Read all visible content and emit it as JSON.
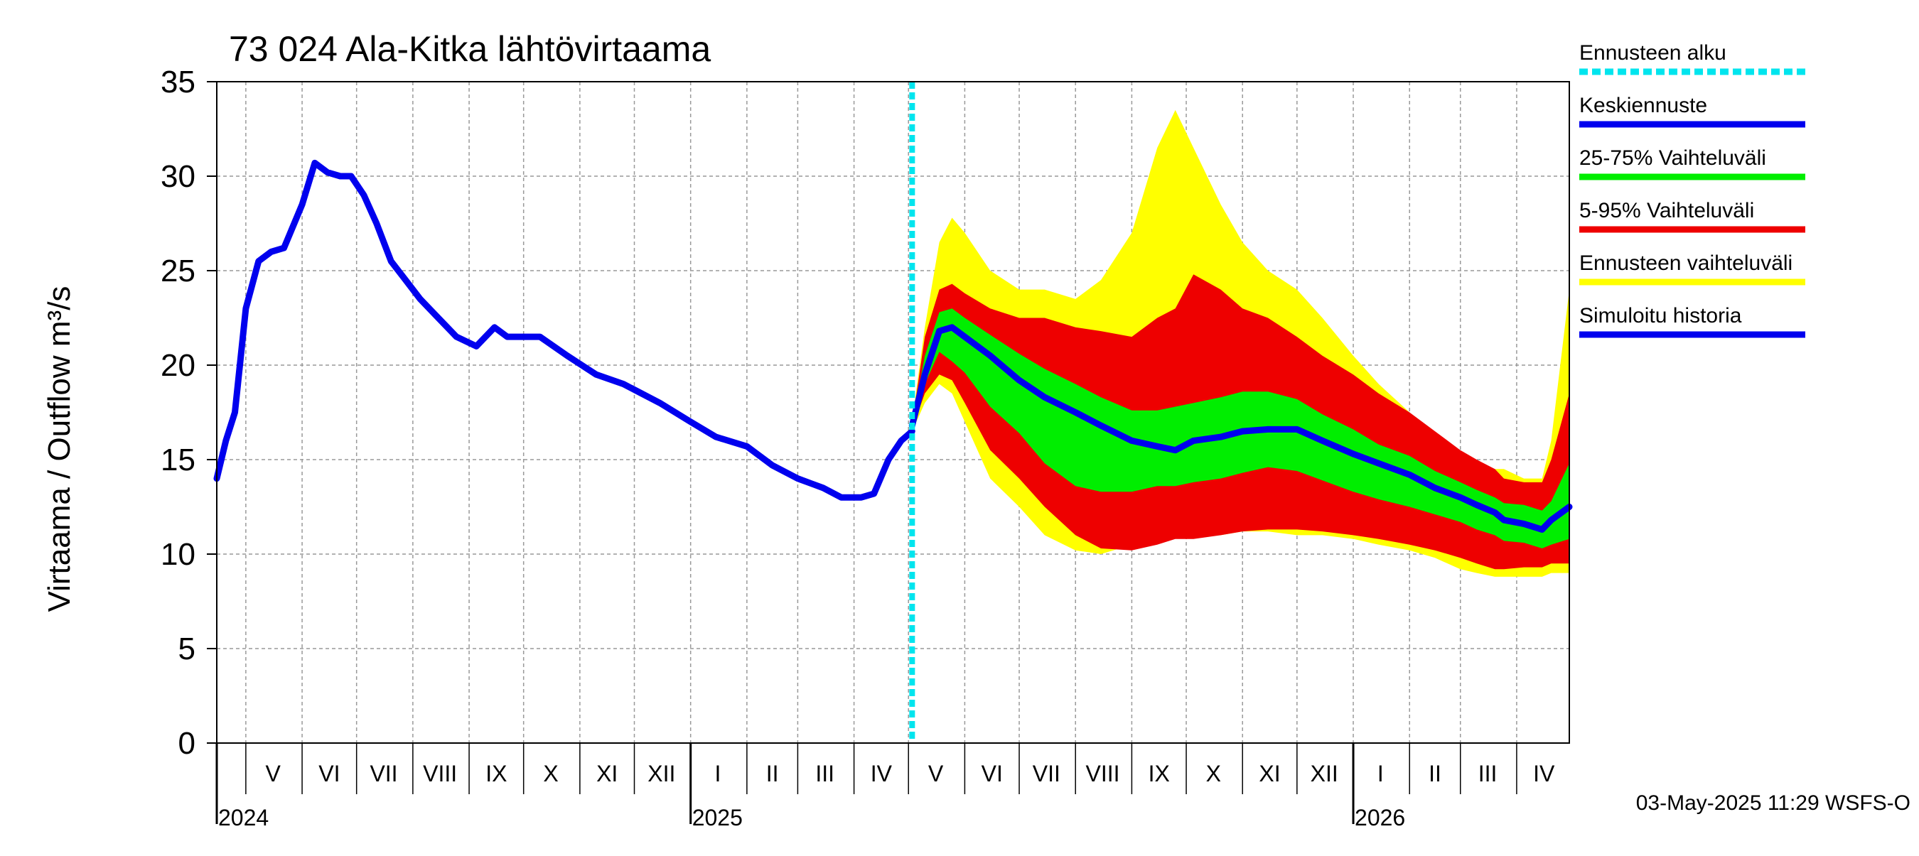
{
  "chart_data": {
    "type": "line",
    "title": "73 024 Ala-Kitka lähtövirtaama",
    "ylabel": "Virtaama / Outflow    m³/s",
    "ylim": [
      0,
      35
    ],
    "yticks": [
      0,
      5,
      10,
      15,
      20,
      25,
      30,
      35
    ],
    "xlim": [
      "2024-04-15",
      "2026-04-30"
    ],
    "forecast_start": "2025-05-03",
    "month_labels": [
      {
        "label": "V",
        "date": "2024-05-16"
      },
      {
        "label": "VI",
        "date": "2024-06-16"
      },
      {
        "label": "VII",
        "date": "2024-07-16"
      },
      {
        "label": "VIII",
        "date": "2024-08-16"
      },
      {
        "label": "IX",
        "date": "2024-09-16"
      },
      {
        "label": "X",
        "date": "2024-10-16"
      },
      {
        "label": "XI",
        "date": "2024-11-16"
      },
      {
        "label": "XII",
        "date": "2024-12-16"
      },
      {
        "label": "I",
        "date": "2025-01-16"
      },
      {
        "label": "II",
        "date": "2025-02-15"
      },
      {
        "label": "III",
        "date": "2025-03-16"
      },
      {
        "label": "IV",
        "date": "2025-04-16"
      },
      {
        "label": "V",
        "date": "2025-05-16"
      },
      {
        "label": "VI",
        "date": "2025-06-16"
      },
      {
        "label": "VII",
        "date": "2025-07-16"
      },
      {
        "label": "VIII",
        "date": "2025-08-16"
      },
      {
        "label": "IX",
        "date": "2025-09-16"
      },
      {
        "label": "X",
        "date": "2025-10-16"
      },
      {
        "label": "XI",
        "date": "2025-11-16"
      },
      {
        "label": "XII",
        "date": "2025-12-16"
      },
      {
        "label": "I",
        "date": "2026-01-16"
      },
      {
        "label": "II",
        "date": "2026-02-15"
      },
      {
        "label": "III",
        "date": "2026-03-16"
      },
      {
        "label": "IV",
        "date": "2026-04-16"
      }
    ],
    "year_labels": [
      {
        "label": "2024",
        "date": "2024-04-15"
      },
      {
        "label": "2025",
        "date": "2025-01-01"
      },
      {
        "label": "2026",
        "date": "2026-01-01"
      }
    ],
    "legend": [
      {
        "label": "Ennusteen alku",
        "color": "#00e5ee",
        "style": "dotted"
      },
      {
        "label": "Keskiennuste",
        "color": "#0000ee",
        "style": "line"
      },
      {
        "label": "25-75% Vaihteluväli",
        "color": "#00ee00",
        "style": "line"
      },
      {
        "label": "5-95% Vaihteluväli",
        "color": "#ee0000",
        "style": "line"
      },
      {
        "label": "Ennusteen vaihteluväli",
        "color": "#ffff00",
        "style": "line"
      },
      {
        "label": "Simuloitu historia",
        "color": "#0000ee",
        "style": "line"
      }
    ],
    "footer": "03-May-2025 11:29 WSFS-O",
    "colors": {
      "history": "#0000ee",
      "median": "#0000ee",
      "band_25_75": "#00ee00",
      "band_5_95": "#ee0000",
      "band_minmax": "#ffff00",
      "forecast_start": "#00e5ee",
      "grid": "#999999"
    },
    "series": [
      {
        "name": "Simuloitu historia",
        "x": [
          "2024-04-15",
          "2024-04-20",
          "2024-04-25",
          "2024-05-01",
          "2024-05-08",
          "2024-05-15",
          "2024-05-22",
          "2024-06-01",
          "2024-06-08",
          "2024-06-15",
          "2024-06-22",
          "2024-06-28",
          "2024-07-05",
          "2024-07-12",
          "2024-07-20",
          "2024-07-28",
          "2024-08-05",
          "2024-08-15",
          "2024-08-25",
          "2024-09-05",
          "2024-09-15",
          "2024-09-22",
          "2024-09-28",
          "2024-10-10",
          "2024-10-25",
          "2024-11-10",
          "2024-11-25",
          "2024-12-15",
          "2025-01-01",
          "2025-01-15",
          "2025-02-01",
          "2025-02-15",
          "2025-03-01",
          "2025-03-15",
          "2025-03-25",
          "2025-04-05",
          "2025-04-12",
          "2025-04-20",
          "2025-04-27",
          "2025-05-03"
        ],
        "values": [
          14.0,
          16.0,
          17.5,
          23.0,
          25.5,
          26.0,
          26.2,
          28.5,
          30.7,
          30.2,
          30.0,
          30.0,
          29.0,
          27.5,
          25.5,
          24.5,
          23.5,
          22.5,
          21.5,
          21.0,
          22.0,
          21.5,
          21.5,
          21.5,
          20.5,
          19.5,
          19.0,
          18.0,
          17.0,
          16.2,
          15.7,
          14.7,
          14.0,
          13.5,
          13.0,
          13.0,
          13.2,
          15.0,
          16.0,
          16.5
        ]
      },
      {
        "name": "Keskiennuste",
        "x": [
          "2025-05-03",
          "2025-05-10",
          "2025-05-18",
          "2025-05-25",
          "2025-06-01",
          "2025-06-15",
          "2025-07-01",
          "2025-07-15",
          "2025-08-01",
          "2025-08-15",
          "2025-09-01",
          "2025-09-15",
          "2025-09-25",
          "2025-10-05",
          "2025-10-20",
          "2025-11-01",
          "2025-11-15",
          "2025-12-01",
          "2025-12-15",
          "2026-01-01",
          "2026-01-15",
          "2026-02-01",
          "2026-02-15",
          "2026-03-01",
          "2026-03-10",
          "2026-03-20",
          "2026-03-25",
          "2026-04-05",
          "2026-04-15",
          "2026-04-20",
          "2026-04-30"
        ],
        "values": [
          16.8,
          19.5,
          21.8,
          22.0,
          21.5,
          20.5,
          19.2,
          18.3,
          17.5,
          16.8,
          16.0,
          15.7,
          15.5,
          16.0,
          16.2,
          16.5,
          16.6,
          16.6,
          16.0,
          15.3,
          14.8,
          14.2,
          13.5,
          13.0,
          12.6,
          12.2,
          11.8,
          11.6,
          11.3,
          11.8,
          12.5
        ]
      }
    ],
    "bands": [
      {
        "name": "Ennusteen vaihteluväli",
        "x": [
          "2025-05-03",
          "2025-05-10",
          "2025-05-18",
          "2025-05-25",
          "2025-06-01",
          "2025-06-15",
          "2025-07-01",
          "2025-07-15",
          "2025-08-01",
          "2025-08-15",
          "2025-09-01",
          "2025-09-15",
          "2025-09-25",
          "2025-10-05",
          "2025-10-20",
          "2025-11-01",
          "2025-11-15",
          "2025-12-01",
          "2025-12-15",
          "2026-01-01",
          "2026-01-15",
          "2026-02-01",
          "2026-02-15",
          "2026-03-01",
          "2026-03-10",
          "2026-03-20",
          "2026-03-25",
          "2026-04-05",
          "2026-04-15",
          "2026-04-20",
          "2026-04-30"
        ],
        "upper": [
          17.0,
          22.0,
          26.5,
          27.8,
          27.0,
          25.0,
          24.0,
          24.0,
          23.5,
          24.5,
          27.0,
          31.5,
          33.5,
          31.5,
          28.5,
          26.5,
          25.0,
          24.0,
          22.5,
          20.5,
          19.0,
          17.5,
          16.0,
          15.0,
          14.5,
          14.5,
          14.5,
          14.0,
          14.0,
          16.0,
          24.0
        ],
        "lower": [
          16.5,
          18.0,
          19.0,
          18.5,
          17.0,
          14.0,
          12.5,
          11.0,
          10.2,
          10.0,
          10.5,
          10.8,
          11.0,
          11.0,
          11.0,
          11.2,
          11.2,
          11.0,
          11.0,
          10.8,
          10.5,
          10.2,
          9.8,
          9.2,
          9.0,
          8.8,
          8.8,
          8.8,
          8.8,
          9.0,
          9.0
        ]
      },
      {
        "name": "5-95% Vaihteluväli",
        "x": [
          "2025-05-03",
          "2025-05-10",
          "2025-05-18",
          "2025-05-25",
          "2025-06-01",
          "2025-06-15",
          "2025-07-01",
          "2025-07-15",
          "2025-08-01",
          "2025-08-15",
          "2025-09-01",
          "2025-09-15",
          "2025-09-25",
          "2025-10-05",
          "2025-10-20",
          "2025-11-01",
          "2025-11-15",
          "2025-12-01",
          "2025-12-15",
          "2026-01-01",
          "2026-01-15",
          "2026-02-01",
          "2026-02-15",
          "2026-03-01",
          "2026-03-10",
          "2026-03-20",
          "2026-03-25",
          "2026-04-05",
          "2026-04-15",
          "2026-04-20",
          "2026-04-30"
        ],
        "upper": [
          16.9,
          21.5,
          24.0,
          24.3,
          23.8,
          23.0,
          22.5,
          22.5,
          22.0,
          21.8,
          21.5,
          22.5,
          23.0,
          24.8,
          24.0,
          23.0,
          22.5,
          21.5,
          20.5,
          19.5,
          18.5,
          17.5,
          16.5,
          15.5,
          15.0,
          14.5,
          14.0,
          13.8,
          13.8,
          15.0,
          18.5
        ],
        "lower": [
          16.6,
          18.5,
          19.5,
          19.2,
          18.0,
          15.5,
          14.0,
          12.5,
          11.0,
          10.3,
          10.2,
          10.5,
          10.8,
          10.8,
          11.0,
          11.2,
          11.3,
          11.3,
          11.2,
          11.0,
          10.8,
          10.5,
          10.2,
          9.8,
          9.5,
          9.2,
          9.2,
          9.3,
          9.3,
          9.5,
          9.5
        ]
      },
      {
        "name": "25-75% Vaihteluväli",
        "x": [
          "2025-05-03",
          "2025-05-10",
          "2025-05-18",
          "2025-05-25",
          "2025-06-01",
          "2025-06-15",
          "2025-07-01",
          "2025-07-15",
          "2025-08-01",
          "2025-08-15",
          "2025-09-01",
          "2025-09-15",
          "2025-09-25",
          "2025-10-05",
          "2025-10-20",
          "2025-11-01",
          "2025-11-15",
          "2025-12-01",
          "2025-12-15",
          "2026-01-01",
          "2026-01-15",
          "2026-02-01",
          "2026-02-15",
          "2026-03-01",
          "2026-03-10",
          "2026-03-20",
          "2026-03-25",
          "2026-04-05",
          "2026-04-15",
          "2026-04-20",
          "2026-04-30"
        ],
        "upper": [
          16.9,
          20.5,
          22.8,
          23.0,
          22.5,
          21.6,
          20.6,
          19.8,
          19.0,
          18.3,
          17.6,
          17.6,
          17.8,
          18.0,
          18.3,
          18.6,
          18.6,
          18.2,
          17.4,
          16.6,
          15.8,
          15.2,
          14.4,
          13.8,
          13.4,
          13.0,
          12.7,
          12.6,
          12.3,
          12.8,
          14.8
        ],
        "lower": [
          16.7,
          19.0,
          20.7,
          20.2,
          19.6,
          17.8,
          16.4,
          14.8,
          13.6,
          13.3,
          13.3,
          13.6,
          13.6,
          13.8,
          14.0,
          14.3,
          14.6,
          14.4,
          13.9,
          13.3,
          12.9,
          12.5,
          12.1,
          11.7,
          11.3,
          11.0,
          10.7,
          10.6,
          10.3,
          10.5,
          10.8
        ]
      }
    ]
  }
}
